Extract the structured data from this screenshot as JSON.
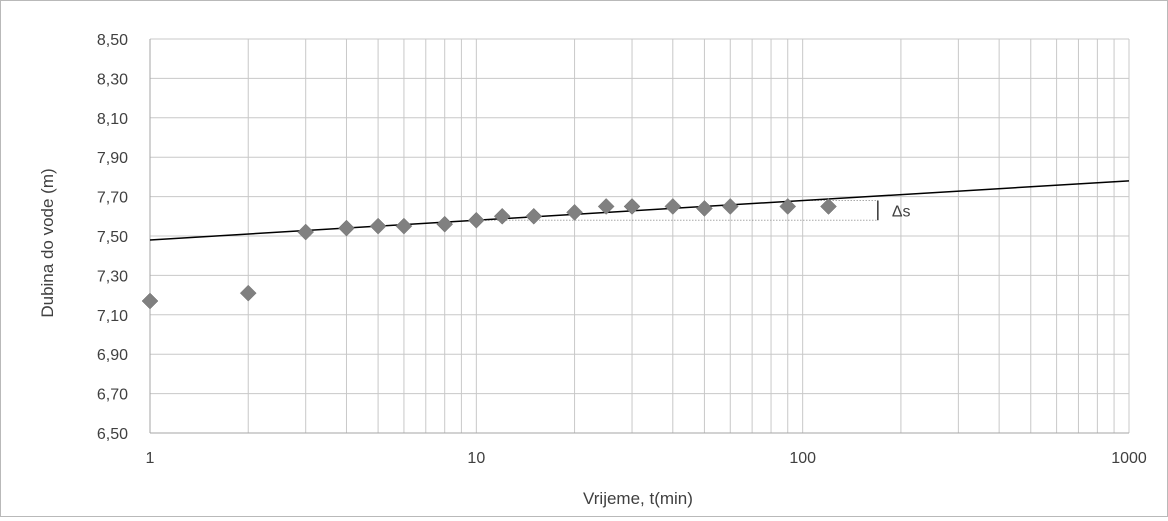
{
  "chart_data": {
    "type": "scatter",
    "xlabel": "Vrijeme, t(min)",
    "ylabel": "Dubina do vode (m)",
    "x_scale": "log",
    "xlim": [
      1,
      1000
    ],
    "ylim": [
      6.5,
      8.5
    ],
    "y_ticks": [
      "6,50",
      "6,70",
      "6,90",
      "7,10",
      "7,30",
      "7,50",
      "7,70",
      "7,90",
      "8,10",
      "8,30",
      "8,50"
    ],
    "y_tick_values": [
      6.5,
      6.7,
      6.9,
      7.1,
      7.3,
      7.5,
      7.7,
      7.9,
      8.1,
      8.3,
      8.5
    ],
    "x_ticks": [
      "1",
      "10",
      "100",
      "1000"
    ],
    "x_tick_values": [
      1,
      10,
      100,
      1000
    ],
    "grid": true,
    "marker_color": "#808080",
    "line_color": "#000000",
    "series": [
      {
        "x": [
          1,
          2,
          3,
          4,
          5,
          6,
          8,
          10,
          12,
          15,
          20,
          25,
          30,
          40,
          50,
          60,
          90,
          120
        ],
        "y": [
          7.17,
          7.21,
          7.52,
          7.54,
          7.55,
          7.55,
          7.56,
          7.58,
          7.6,
          7.6,
          7.62,
          7.65,
          7.65,
          7.65,
          7.64,
          7.65,
          7.65,
          7.65
        ]
      }
    ],
    "trendline": {
      "x": [
        1,
        1000
      ],
      "y": [
        7.48,
        7.78
      ]
    },
    "annotation": {
      "label": "Δs",
      "x": 170,
      "y_low": 7.58,
      "y_high": 7.68
    }
  }
}
